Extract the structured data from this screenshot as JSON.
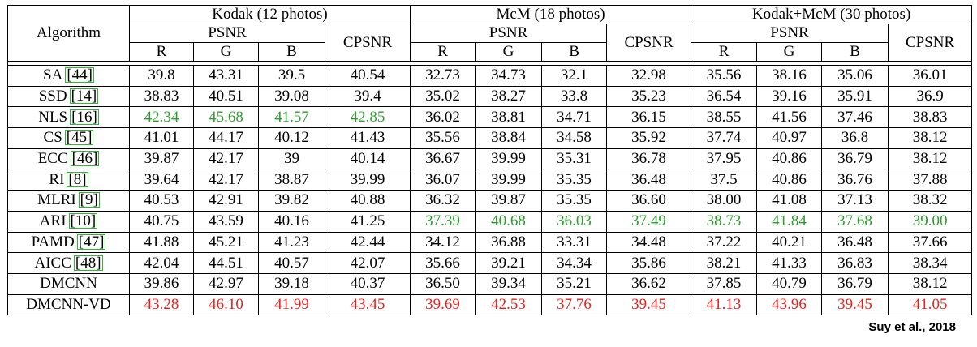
{
  "header": {
    "algorithm": "Algorithm",
    "datasets": [
      "Kodak (12 photos)",
      "McM (18 photos)",
      "Kodak+McM (30 photos)"
    ],
    "psnr": "PSNR",
    "cpsnr": "CPSNR",
    "channels": [
      "R",
      "G",
      "B"
    ]
  },
  "colors": {
    "best": "#e8211c",
    "second": "#2e9d2e",
    "ref_box": "#2eb82e"
  },
  "rows": [
    {
      "name": "SA",
      "ref": "[44]",
      "values": [
        "39.8",
        "43.31",
        "39.5",
        "40.54",
        "32.73",
        "34.73",
        "32.1",
        "32.98",
        "35.56",
        "38.16",
        "35.06",
        "36.01"
      ],
      "style": ""
    },
    {
      "name": "SSD",
      "ref": "[14]",
      "values": [
        "38.83",
        "40.51",
        "39.08",
        "39.4",
        "35.02",
        "38.27",
        "33.8",
        "35.23",
        "36.54",
        "39.16",
        "35.91",
        "36.9"
      ],
      "style": ""
    },
    {
      "name": "NLS",
      "ref": "[16]",
      "values": [
        "42.34",
        "45.68",
        "41.57",
        "42.85",
        "36.02",
        "38.81",
        "34.71",
        "36.15",
        "38.55",
        "41.56",
        "37.46",
        "38.83"
      ],
      "style": "kodak-green"
    },
    {
      "name": "CS",
      "ref": "[45]",
      "values": [
        "41.01",
        "44.17",
        "40.12",
        "41.43",
        "35.56",
        "38.84",
        "34.58",
        "35.92",
        "37.74",
        "40.97",
        "36.8",
        "38.12"
      ],
      "style": ""
    },
    {
      "name": "ECC",
      "ref": "[46]",
      "values": [
        "39.87",
        "42.17",
        "39",
        "40.14",
        "36.67",
        "39.99",
        "35.31",
        "36.78",
        "37.95",
        "40.86",
        "36.79",
        "38.12"
      ],
      "style": ""
    },
    {
      "name": "RI",
      "ref": "[8]",
      "values": [
        "39.64",
        "42.17",
        "38.87",
        "39.99",
        "36.07",
        "39.99",
        "35.35",
        "36.48",
        "37.5",
        "40.86",
        "36.76",
        "37.88"
      ],
      "style": ""
    },
    {
      "name": "MLRI",
      "ref": "[9]",
      "values": [
        "40.53",
        "42.91",
        "39.82",
        "40.88",
        "36.32",
        "39.87",
        "35.35",
        "36.60",
        "38.00",
        "41.08",
        "37.13",
        "38.32"
      ],
      "style": ""
    },
    {
      "name": "ARI",
      "ref": "[10]",
      "values": [
        "40.75",
        "43.59",
        "40.16",
        "41.25",
        "37.39",
        "40.68",
        "36.03",
        "37.49",
        "38.73",
        "41.84",
        "37.68",
        "39.00"
      ],
      "style": "mcm-green"
    },
    {
      "name": "PAMD",
      "ref": "[47]",
      "values": [
        "41.88",
        "45.21",
        "41.23",
        "42.44",
        "34.12",
        "36.88",
        "33.31",
        "34.48",
        "37.22",
        "40.21",
        "36.48",
        "37.66"
      ],
      "style": ""
    },
    {
      "name": "AICC",
      "ref": "[48]",
      "values": [
        "42.04",
        "44.51",
        "40.57",
        "42.07",
        "35.66",
        "39.21",
        "34.34",
        "35.86",
        "38.21",
        "41.33",
        "36.83",
        "38.34"
      ],
      "style": ""
    },
    {
      "name": "DMCNN",
      "ref": "",
      "values": [
        "39.86",
        "42.97",
        "39.18",
        "40.37",
        "36.50",
        "39.34",
        "35.21",
        "36.62",
        "37.85",
        "40.79",
        "36.79",
        "38.12"
      ],
      "style": ""
    },
    {
      "name": "DMCNN-VD",
      "ref": "",
      "values": [
        "43.28",
        "46.10",
        "41.99",
        "43.45",
        "39.69",
        "42.53",
        "37.76",
        "39.45",
        "41.13",
        "43.96",
        "39.45",
        "41.05"
      ],
      "style": "all-red"
    }
  ],
  "credit": "Suy et al., 2018"
}
